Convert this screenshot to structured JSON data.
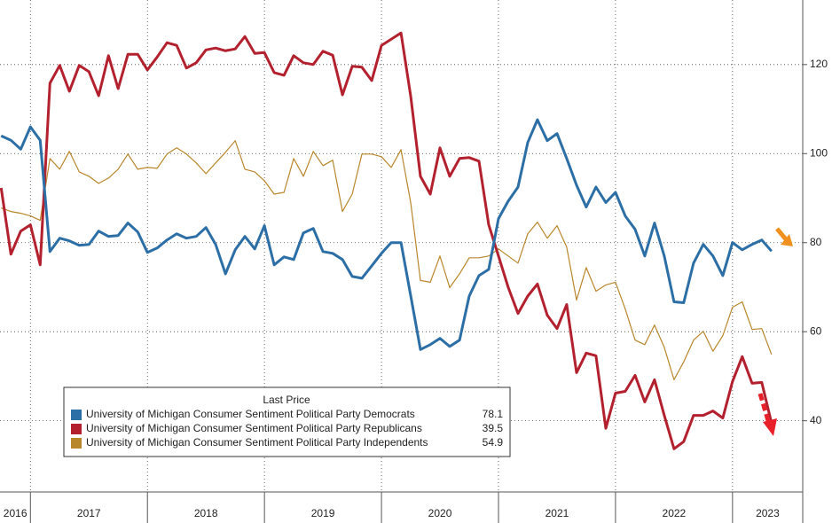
{
  "chart_data": {
    "type": "line",
    "x": [
      2016.75,
      2016.833,
      2016.917,
      2017,
      2017.083,
      2017.167,
      2017.25,
      2017.333,
      2017.417,
      2017.5,
      2017.583,
      2017.667,
      2017.75,
      2017.833,
      2017.917,
      2018,
      2018.083,
      2018.167,
      2018.25,
      2018.333,
      2018.417,
      2018.5,
      2018.583,
      2018.667,
      2018.75,
      2018.833,
      2018.917,
      2019,
      2019.083,
      2019.167,
      2019.25,
      2019.333,
      2019.417,
      2019.5,
      2019.583,
      2019.667,
      2019.75,
      2019.833,
      2019.917,
      2020,
      2020.083,
      2020.167,
      2020.25,
      2020.333,
      2020.417,
      2020.5,
      2020.583,
      2020.667,
      2020.75,
      2020.833,
      2020.917,
      2021,
      2021.083,
      2021.167,
      2021.25,
      2021.333,
      2021.417,
      2021.5,
      2021.583,
      2021.667,
      2021.75,
      2021.833,
      2021.917,
      2022,
      2022.083,
      2022.167,
      2022.25,
      2022.333,
      2022.417,
      2022.5,
      2022.583,
      2022.667,
      2022.75,
      2022.833,
      2022.917,
      2023,
      2023.083,
      2023.167,
      2023.25,
      2023.333
    ],
    "series": [
      {
        "name": "University of Michigan Consumer Sentiment Political Party Democrats",
        "color": "#2c6ea6",
        "width": 3,
        "values": [
          104,
          103,
          101,
          106,
          103,
          78,
          81,
          80.4,
          79.4,
          79.6,
          82.6,
          81.4,
          81.6,
          84.4,
          82.4,
          77.8,
          78.8,
          80.6,
          82,
          81,
          81.4,
          83.4,
          79.6,
          73,
          78.4,
          81.4,
          78.6,
          83.8,
          75,
          76.8,
          76.2,
          82.2,
          83.2,
          78,
          77.6,
          76.2,
          72.4,
          72,
          74.8,
          77.6,
          80,
          80,
          68,
          56,
          57.1,
          58.5,
          56.7,
          58.1,
          68,
          72.6,
          74,
          85.4,
          89.3,
          92.5,
          102.5,
          107.6,
          102.9,
          104.5,
          98.9,
          92.9,
          88,
          92.5,
          89,
          91.3,
          86,
          83,
          77,
          84.4,
          77,
          66.7,
          66.5,
          75.4,
          79.6,
          77,
          72.6,
          80,
          78.4,
          79.6,
          80.6,
          78.1
        ]
      },
      {
        "name": "University of Michigan Consumer Sentiment Political Party Republicans",
        "color": "#b3202e",
        "width": 3,
        "values": [
          92.3,
          77.4,
          82.6,
          84,
          75,
          115.8,
          119.8,
          114,
          119.8,
          118.4,
          113,
          122,
          114.6,
          122.3,
          122.3,
          118.8,
          121.7,
          124.9,
          124.3,
          119.2,
          120.4,
          123.3,
          123.7,
          123.1,
          123.5,
          126.3,
          122.5,
          122.7,
          118.2,
          117.6,
          122,
          120.4,
          120,
          123,
          122.1,
          113.2,
          119.6,
          119.4,
          116.4,
          124.3,
          125.7,
          127.1,
          112.8,
          94.9,
          90.9,
          101.3,
          94.9,
          98.9,
          99.1,
          98.3,
          84,
          77,
          70,
          64.1,
          68,
          70.7,
          63.7,
          60.7,
          66.1,
          50.8,
          55.2,
          54.6,
          38.3,
          46.2,
          46.6,
          50.2,
          44.2,
          49.2,
          41.2,
          33.7,
          35.3,
          41.2,
          41.2,
          42.2,
          40.6,
          48.8,
          54.4,
          48.4,
          48.6,
          39.5
        ]
      },
      {
        "name": "University of Michigan Consumer Sentiment Political Party Independents",
        "color": "#b8862b",
        "width": 1.2,
        "values": [
          87.8,
          87,
          86.6,
          86,
          85,
          98.9,
          96.5,
          100.5,
          95.9,
          94.9,
          93.3,
          94.5,
          96.5,
          99.9,
          96.5,
          96.9,
          96.7,
          99.9,
          101.3,
          99.9,
          97.9,
          95.5,
          97.9,
          100.3,
          102.9,
          96.5,
          95.9,
          93.9,
          90.9,
          91.3,
          98.9,
          94.9,
          100.5,
          97.3,
          98.5,
          87,
          90.9,
          99.9,
          99.9,
          99.3,
          96.9,
          100.9,
          88.9,
          71.5,
          71.1,
          77,
          69.9,
          73,
          76.6,
          76.6,
          77,
          78.6,
          77,
          75.4,
          82,
          84.6,
          81,
          83.8,
          79,
          67.1,
          74.4,
          69.1,
          70.5,
          71.1,
          65.1,
          58.1,
          57.1,
          61.5,
          56.5,
          49.2,
          53.2,
          58.1,
          60.1,
          55.6,
          59.1,
          65.5,
          66.7,
          60.5,
          60.7,
          54.9
        ]
      }
    ],
    "xlim": [
      2016.74,
      2023.6
    ],
    "xticks": [
      {
        "value": 2016.87,
        "label": "2016"
      },
      {
        "value": 2017.5,
        "label": "2017"
      },
      {
        "value": 2018.5,
        "label": "2018"
      },
      {
        "value": 2019.5,
        "label": "2019"
      },
      {
        "value": 2020.5,
        "label": "2020"
      },
      {
        "value": 2021.5,
        "label": "2021"
      },
      {
        "value": 2022.5,
        "label": "2022"
      },
      {
        "value": 2023.3,
        "label": "2023"
      }
    ],
    "ylim": [
      24,
      134.5
    ],
    "yticks": [
      40,
      60,
      80,
      100,
      120
    ],
    "grid": true,
    "legend_title": "Last Price",
    "legend": "lower left"
  }
}
